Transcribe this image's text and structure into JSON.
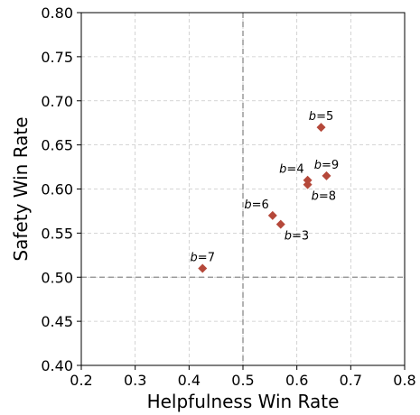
{
  "chart_data": {
    "type": "scatter",
    "title": "",
    "xlabel": "Helpfulness Win Rate",
    "ylabel": "Safety Win Rate",
    "xlim": [
      0.2,
      0.8
    ],
    "ylim": [
      0.4,
      0.8
    ],
    "xticks": [
      "0.2",
      "0.3",
      "0.4",
      "0.5",
      "0.6",
      "0.7",
      "0.8"
    ],
    "yticks": [
      "0.40",
      "0.45",
      "0.50",
      "0.55",
      "0.60",
      "0.65",
      "0.70",
      "0.75",
      "0.80"
    ],
    "grid": true,
    "reference_lines": {
      "x": 0.5,
      "y": 0.5
    },
    "marker": "diamond",
    "marker_color": "#b5483a",
    "points": [
      {
        "label_var": "b",
        "label_eq": "=3",
        "label_pos": "below-right",
        "x": 0.57,
        "y": 0.56
      },
      {
        "label_var": "b",
        "label_eq": "=4",
        "label_pos": "above-left",
        "x": 0.62,
        "y": 0.61
      },
      {
        "label_var": "b",
        "label_eq": "=5",
        "label_pos": "above",
        "x": 0.645,
        "y": 0.67
      },
      {
        "label_var": "b",
        "label_eq": "=6",
        "label_pos": "above-left",
        "x": 0.555,
        "y": 0.57
      },
      {
        "label_var": "b",
        "label_eq": "=7",
        "label_pos": "above",
        "x": 0.425,
        "y": 0.51
      },
      {
        "label_var": "b",
        "label_eq": "=8",
        "label_pos": "below-right",
        "x": 0.62,
        "y": 0.605
      },
      {
        "label_var": "b",
        "label_eq": "=9",
        "label_pos": "above",
        "x": 0.655,
        "y": 0.615
      }
    ]
  }
}
